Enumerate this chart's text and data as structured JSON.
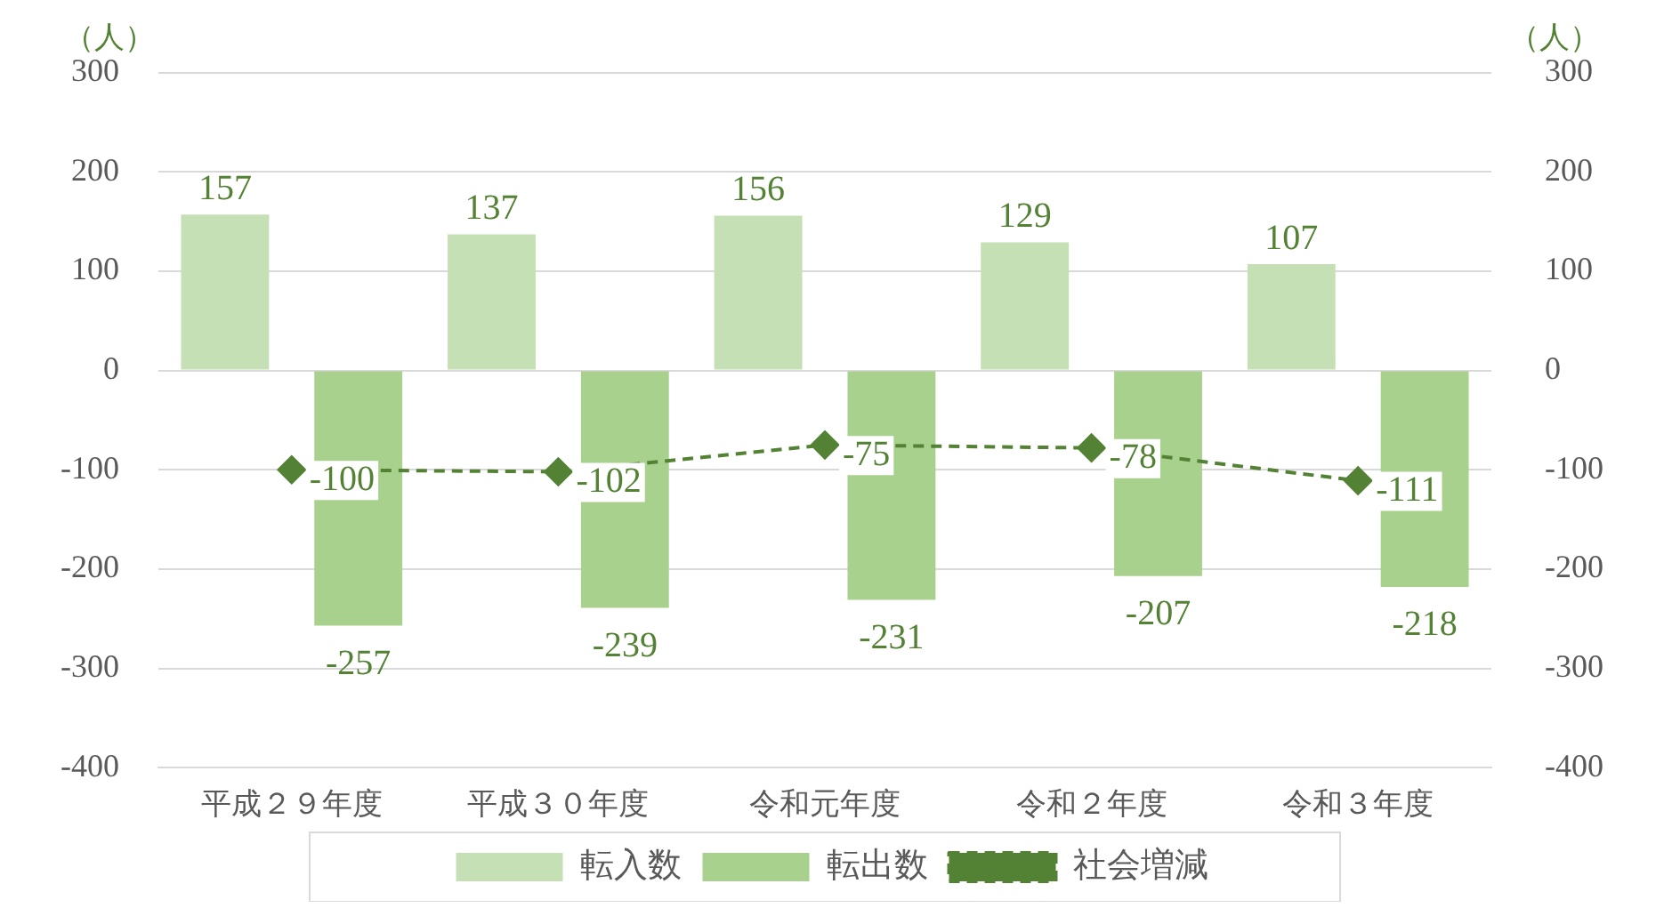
{
  "chart_data": {
    "type": "bar",
    "categories": [
      "平成２９年度",
      "平成３０年度",
      "令和元年度",
      "令和２年度",
      "令和３年度"
    ],
    "series": [
      {
        "name": "転入数",
        "color": "#c5e0b4",
        "values": [
          157,
          137,
          156,
          129,
          107
        ]
      },
      {
        "name": "転出数",
        "color": "#a9d18e",
        "values": [
          -257,
          -239,
          -231,
          -207,
          -218
        ]
      },
      {
        "name": "社会増減",
        "type": "line",
        "color": "#548235",
        "marker": "diamond",
        "line_style": "dashed",
        "values": [
          -100,
          -102,
          -75,
          -78,
          -111
        ]
      }
    ],
    "ylabel": "（人）",
    "y2label": "（人）",
    "ylim": [
      -400,
      300
    ],
    "yticks": [
      -400,
      -300,
      -200,
      -100,
      0,
      100,
      200,
      300
    ],
    "y2lim": [
      -400,
      300
    ],
    "y2ticks": [
      -400,
      -300,
      -200,
      -100,
      0,
      100,
      200,
      300
    ],
    "grid": "y",
    "legend": "bottom",
    "data_labels": true
  }
}
